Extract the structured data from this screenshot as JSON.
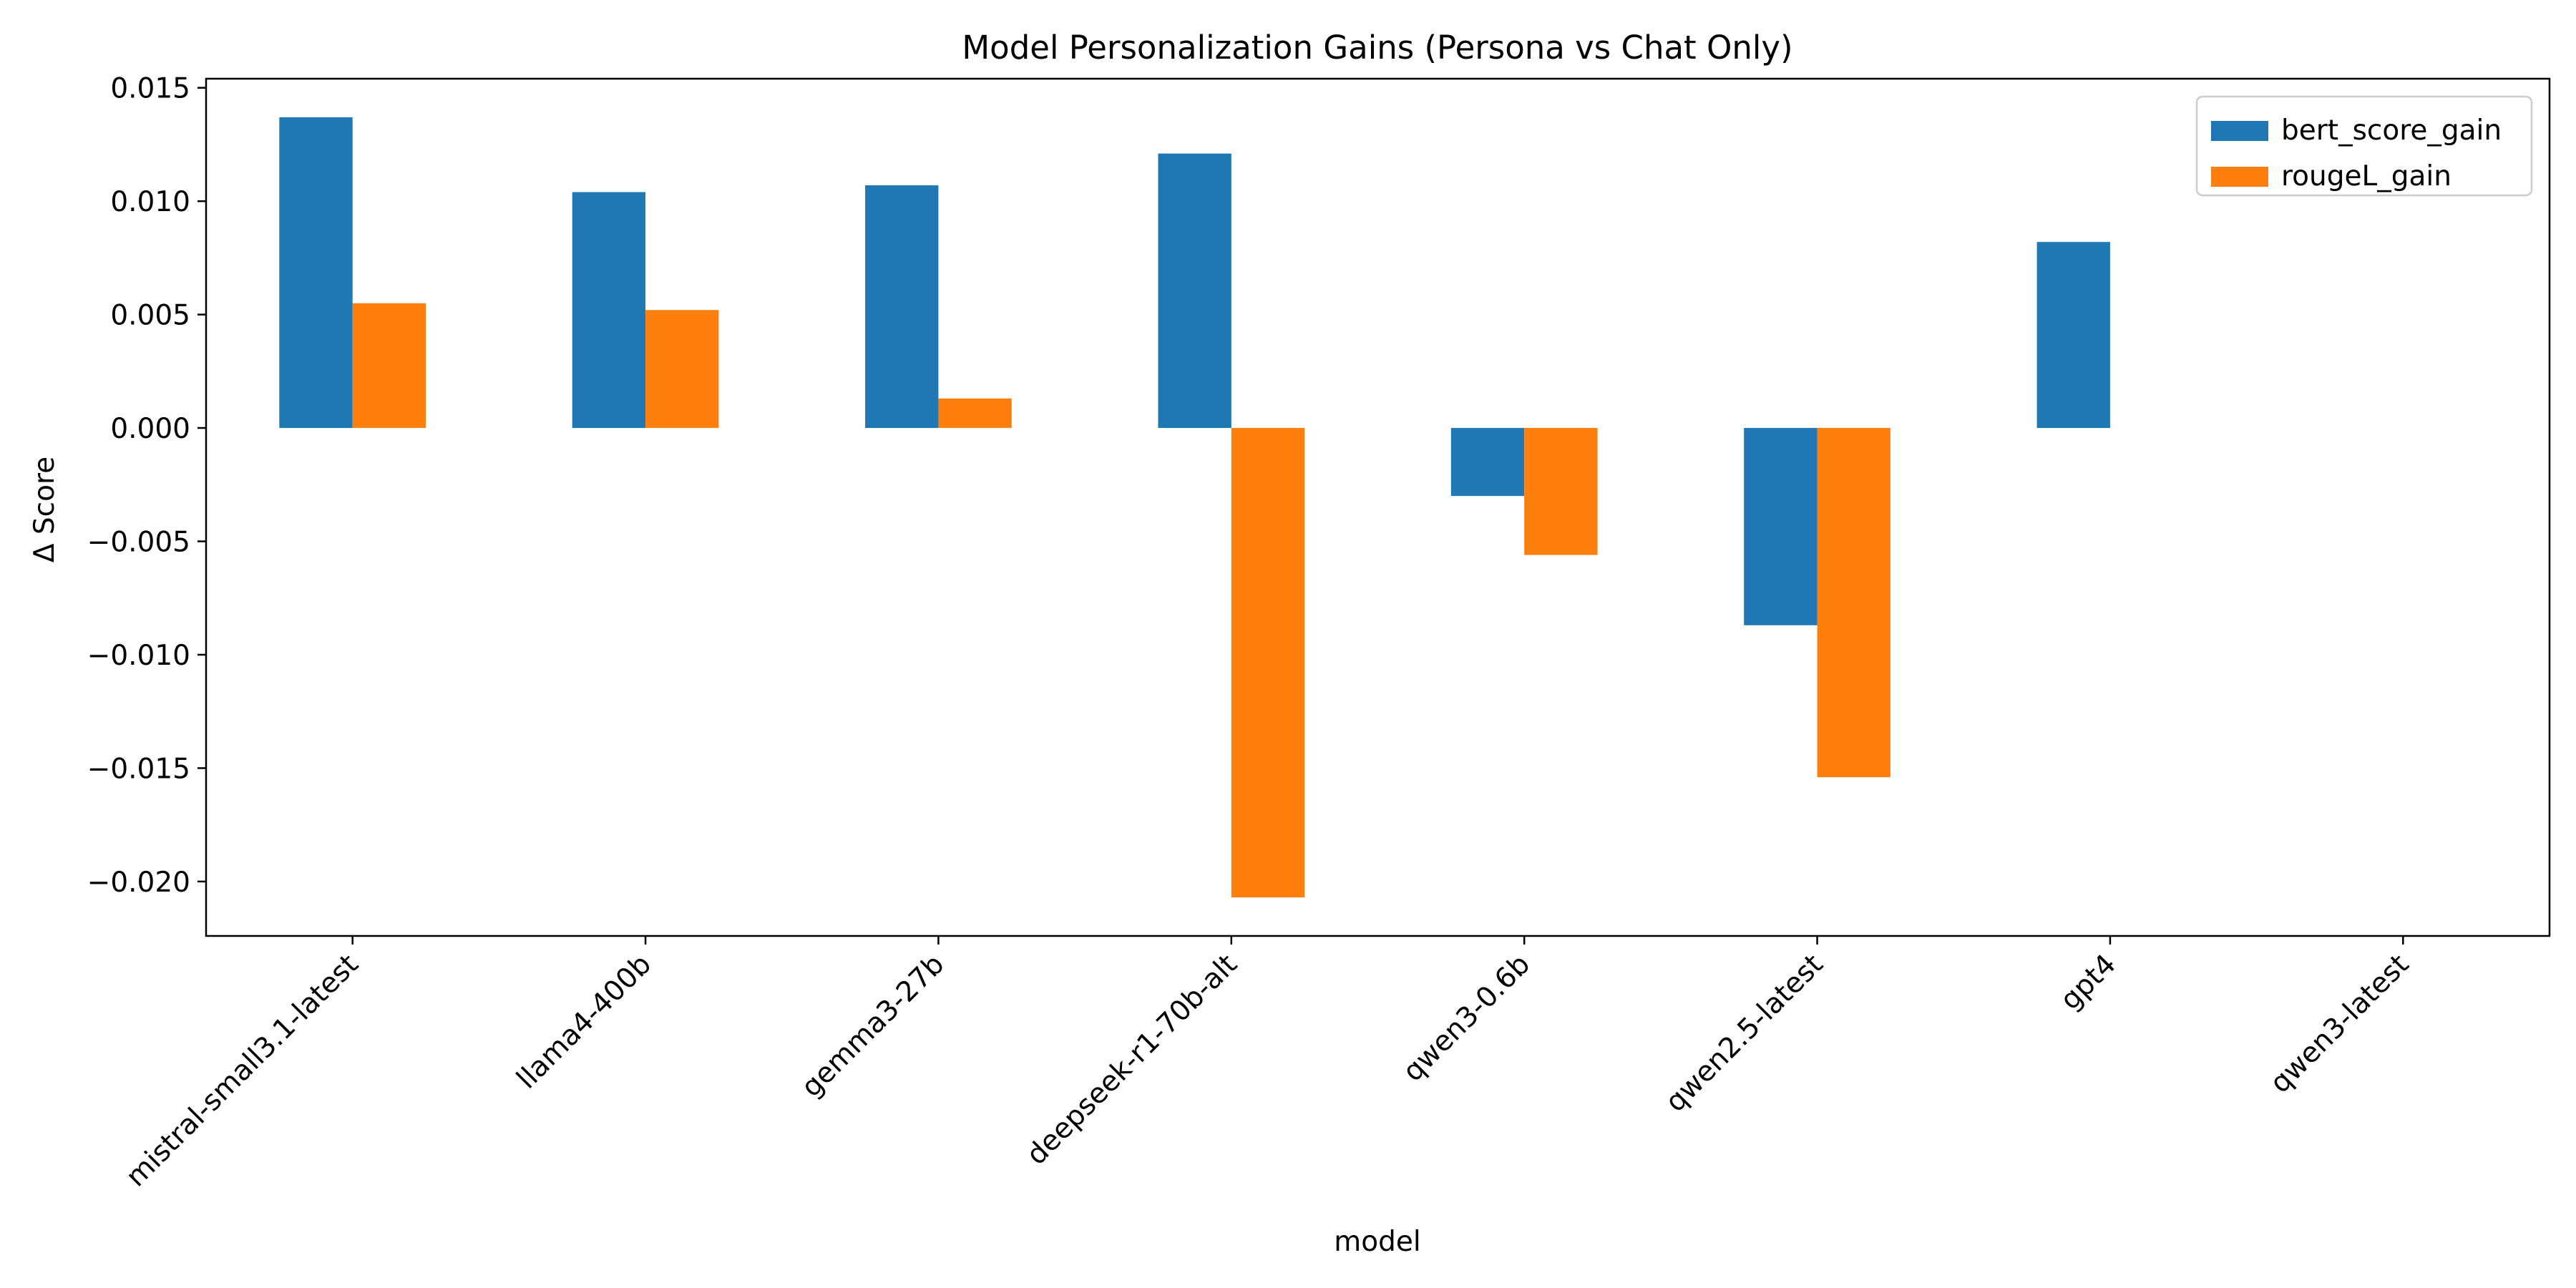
{
  "chart_data": {
    "type": "bar",
    "title": "Model Personalization Gains (Persona vs Chat Only)",
    "xlabel": "model",
    "ylabel": "Δ Score",
    "categories": [
      "mistral-small3.1-latest",
      "llama4-400b",
      "gemma3-27b",
      "deepseek-r1-70b-alt",
      "qwen3-0.6b",
      "qwen2.5-latest",
      "gpt4",
      "qwen3-latest"
    ],
    "series": [
      {
        "name": "bert_score_gain",
        "color": "#1f77b4",
        "values": [
          0.0137,
          0.0104,
          0.0107,
          0.0121,
          -0.003,
          -0.0087,
          0.0082,
          null
        ]
      },
      {
        "name": "rougeL_gain",
        "color": "#ff7f0e",
        "values": [
          0.0055,
          0.0052,
          0.0013,
          -0.0207,
          -0.0056,
          -0.0154,
          null,
          null
        ]
      }
    ],
    "ylim": [
      -0.0224,
      0.0154
    ],
    "yticks": [
      0.015,
      0.01,
      0.005,
      0.0,
      -0.005,
      -0.01,
      -0.015,
      -0.02
    ],
    "ytick_labels": [
      "0.015",
      "0.010",
      "0.005",
      "0.000",
      "−0.005",
      "−0.010",
      "−0.015",
      "−0.020"
    ],
    "grid": false,
    "legend_position": "top-right"
  }
}
